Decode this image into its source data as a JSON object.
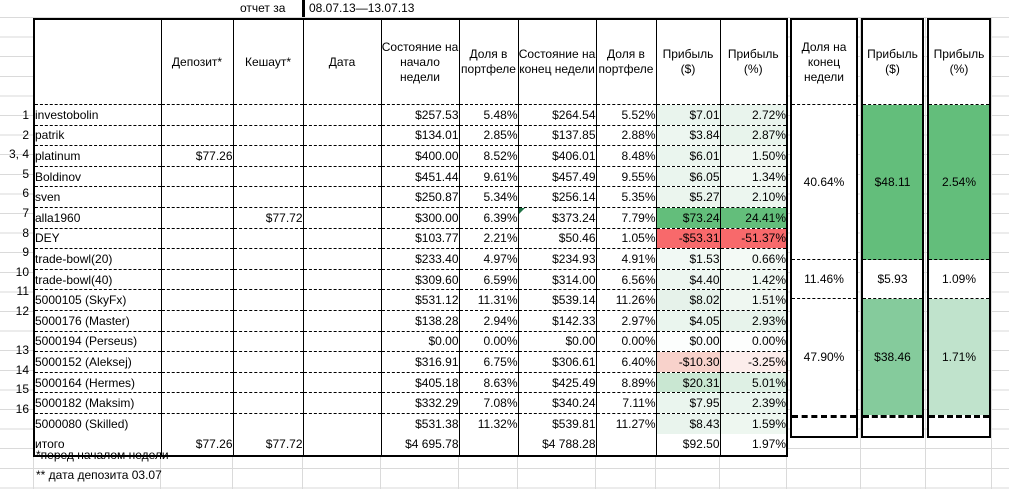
{
  "title_bar": {
    "label": "отчет за",
    "period": "08.07.13—13.07.13"
  },
  "colors": {
    "strong_green": "#63be7b",
    "strong_red": "#f8696b",
    "light_green": "#e9f4ed",
    "pink": "#f8d2cb",
    "group_green_mid": "#85cb9c",
    "group_green_light": "#c0e3cc",
    "border": "#000000",
    "gridline": "#dadada"
  },
  "table": {
    "columns": [
      "",
      "Депозит*",
      "Кешаут*",
      "Дата",
      "Состояние на начало недели",
      "Доля в портфеле",
      "Состояние на конец недели",
      "Доля в портфеле",
      "Прибыль ($)",
      "Прибыль (%)"
    ],
    "rows": [
      {
        "num": "1",
        "name": "investobolin",
        "deposit": "",
        "cashout": "",
        "date": "",
        "start": "$257.53",
        "share1": "5.48%",
        "end": "$264.54",
        "share2": "5.52%",
        "pd": "$7.01",
        "pp": "2.72%",
        "pd_bg": "#e9f4ed",
        "pp_bg": "#e9f4ed"
      },
      {
        "num": "2",
        "name": "patrik",
        "deposit": "",
        "cashout": "",
        "date": "",
        "start": "$134.01",
        "share1": "2.85%",
        "end": "$137.85",
        "share2": "2.88%",
        "pd": "$3.84",
        "pp": "2.87%",
        "pd_bg": "#edf6f0",
        "pp_bg": "#e8f4ec"
      },
      {
        "num": "3, 4",
        "name": "platinum",
        "deposit": "$77.26",
        "cashout": "",
        "date": "",
        "start": "$400.00",
        "share1": "8.52%",
        "end": "$406.01",
        "share2": "8.48%",
        "pd": "$6.01",
        "pp": "1.50%",
        "pd_bg": "#eaf5ee",
        "pp_bg": "#eff7f1"
      },
      {
        "num": "5",
        "name": "Boldinov",
        "deposit": "",
        "cashout": "",
        "date": "",
        "start": "$451.44",
        "share1": "9.61%",
        "end": "$457.49",
        "share2": "9.55%",
        "pd": "$6.05",
        "pp": "1.34%",
        "pd_bg": "#eaf5ee",
        "pp_bg": "#f0f8f2"
      },
      {
        "num": "6",
        "name": "sven",
        "deposit": "",
        "cashout": "",
        "date": "",
        "start": "$250.87",
        "share1": "5.34%",
        "end": "$256.14",
        "share2": "5.35%",
        "pd": "$5.27",
        "pp": "2.10%",
        "pd_bg": "#ebf5ee",
        "pp_bg": "#ecf6ef"
      },
      {
        "num": "7",
        "name": "alla1960",
        "deposit": "",
        "cashout": "$77.72",
        "date": "",
        "start": "$300.00",
        "share1": "6.39%",
        "end": "$373.24",
        "share2": "7.79%",
        "pd": "$73.24",
        "pp": "24.41%",
        "pd_bg": "#63be7b",
        "pp_bg": "#63be7b",
        "has_note": true
      },
      {
        "num": "8",
        "name": "DEY",
        "deposit": "",
        "cashout": "",
        "date": "",
        "start": "$103.77",
        "share1": "2.21%",
        "end": "$50.46",
        "share2": "1.05%",
        "pd": "-$53.31",
        "pp": "-51.37%",
        "pd_bg": "#f8696b",
        "pp_bg": "#f8696b"
      },
      {
        "num": "9",
        "name": "trade-bowl(20)",
        "deposit": "",
        "cashout": "",
        "date": "",
        "start": "$233.40",
        "share1": "4.97%",
        "end": "$234.93",
        "share2": "4.91%",
        "pd": "$1.53",
        "pp": "0.66%",
        "pd_bg": "#f1f9f4",
        "pp_bg": "#f4faf6"
      },
      {
        "num": "10",
        "name": "trade-bowl(40)",
        "deposit": "",
        "cashout": "",
        "date": "",
        "start": "$309.60",
        "share1": "6.59%",
        "end": "$314.00",
        "share2": "6.56%",
        "pd": "$4.40",
        "pp": "1.42%",
        "pd_bg": "#edf6f0",
        "pp_bg": "#f0f8f2"
      },
      {
        "num": "11",
        "name": "5000105 (SkyFx)",
        "deposit": "",
        "cashout": "",
        "date": "",
        "start": "$531.12",
        "share1": "11.31%",
        "end": "$539.14",
        "share2": "11.26%",
        "pd": "$8.02",
        "pp": "1.51%",
        "pd_bg": "#e6f2ea",
        "pp_bg": "#eff7f1"
      },
      {
        "num": "12",
        "name": "5000176 (Master)",
        "deposit": "",
        "cashout": "",
        "date": "",
        "start": "$138.28",
        "share1": "2.94%",
        "end": "$142.33",
        "share2": "2.97%",
        "pd": "$4.05",
        "pp": "2.93%",
        "pd_bg": "#eaf5ee",
        "pp_bg": "#e7f3eb"
      },
      {
        "num": "",
        "name": "5000194 (Perseus)",
        "deposit": "",
        "cashout": "",
        "date": "",
        "start": "$0.00",
        "share1": "0.00%",
        "end": "$0.00",
        "share2": "0.00%",
        "pd": "$0.00",
        "pp": "0.00%",
        "pd_bg": "#fcfefd",
        "pp_bg": "#fdfefd"
      },
      {
        "num": "13",
        "name": "5000152 (Aleksej)",
        "deposit": "",
        "cashout": "",
        "date": "",
        "start": "$316.91",
        "share1": "6.75%",
        "end": "$306.61",
        "share2": "6.40%",
        "pd": "-$10.30",
        "pp": "-3.25%",
        "pd_bg": "#f8d2cb",
        "pp_bg": "#fcedeb"
      },
      {
        "num": "14",
        "name": "5000164 (Hermes)",
        "deposit": "",
        "cashout": "",
        "date": "",
        "start": "$405.18",
        "share1": "8.63%",
        "end": "$425.49",
        "share2": "8.89%",
        "pd": "$20.31",
        "pp": "5.01%",
        "pd_bg": "#c9e7d2",
        "pp_bg": "#def0e4"
      },
      {
        "num": "15",
        "name": "5000182 (Maksim)",
        "deposit": "",
        "cashout": "",
        "date": "",
        "start": "$332.29",
        "share1": "7.08%",
        "end": "$340.24",
        "share2": "7.11%",
        "pd": "$7.95",
        "pp": "2.39%",
        "pd_bg": "#eaf5ee",
        "pp_bg": "#eaf5ee"
      },
      {
        "num": "16",
        "name": "5000080 (Skilled)",
        "deposit": "",
        "cashout": "",
        "date": "",
        "start": "$531.38",
        "share1": "11.32%",
        "end": "$539.81",
        "share2": "11.27%",
        "pd": "$8.43",
        "pp": "1.59%",
        "pd_bg": "#e9f4ed",
        "pp_bg": "#eef7f0"
      }
    ],
    "total": {
      "label": "итого",
      "deposit": "$77.26",
      "cashout": "$77.72",
      "date": "",
      "start": "$4 695.78",
      "share1": "",
      "end": "$4 788.28",
      "share2": "",
      "pd": "$92.50",
      "pp": "1.97%"
    }
  },
  "right_block": {
    "columns": [
      "Доля на конец недели",
      "Прибыль ($)",
      "Прибыль (%)"
    ],
    "groups": [
      {
        "share": "40.64%",
        "profit_usd": "$48.11",
        "profit_pct": "2.54%",
        "rows": 8,
        "usd_bg": "#63be7b",
        "pct_bg": "#63be7b"
      },
      {
        "share": "11.46%",
        "profit_usd": "$5.93",
        "profit_pct": "1.09%",
        "rows": 2,
        "usd_bg": "#ffffff",
        "pct_bg": "#ffffff"
      },
      {
        "share": "47.90%",
        "profit_usd": "$38.46",
        "profit_pct": "1.71%",
        "rows": 6,
        "usd_bg": "#85cb9c",
        "pct_bg": "#c0e3cc"
      }
    ]
  },
  "footnotes": [
    "*перед началом недели",
    "** дата депозита 03.07"
  ]
}
